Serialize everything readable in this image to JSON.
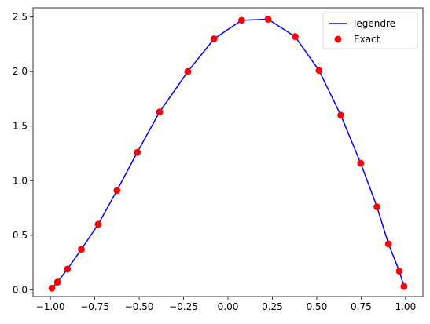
{
  "chart_data": {
    "type": "line",
    "x": [
      -0.9914,
      -0.9603,
      -0.9041,
      -0.8259,
      -0.7308,
      -0.6251,
      -0.5107,
      -0.3853,
      -0.2262,
      -0.0784,
      0.0766,
      0.2259,
      0.3783,
      0.513,
      0.6355,
      0.7475,
      0.8394,
      0.9041,
      0.9654,
      0.9914
    ],
    "series": [
      {
        "name": "legendre",
        "style": "line",
        "color": "#0000ff",
        "values": [
          0.015,
          0.07,
          0.19,
          0.37,
          0.6,
          0.91,
          1.26,
          1.63,
          2.0,
          2.3,
          2.47,
          2.48,
          2.32,
          2.01,
          1.6,
          1.16,
          0.76,
          0.42,
          0.17,
          0.03
        ]
      },
      {
        "name": "Exact",
        "style": "markers",
        "color": "#ff0000",
        "values": [
          0.015,
          0.07,
          0.19,
          0.37,
          0.6,
          0.91,
          1.26,
          1.63,
          2.0,
          2.3,
          2.47,
          2.48,
          2.32,
          2.01,
          1.6,
          1.16,
          0.76,
          0.42,
          0.17,
          0.03
        ]
      }
    ],
    "xlim": [
      -1.0981,
      1.0981
    ],
    "ylim": [
      -0.0625,
      2.584
    ],
    "xticks": [
      -1.0,
      -0.75,
      -0.5,
      -0.25,
      0.0,
      0.25,
      0.5,
      0.75,
      1.0
    ],
    "xtick_labels": [
      "−1.00",
      "−0.75",
      "−0.50",
      "−0.25",
      "0.00",
      "0.25",
      "0.50",
      "0.75",
      "1.00"
    ],
    "yticks": [
      0.0,
      0.5,
      1.0,
      1.5,
      2.0,
      2.5
    ],
    "ytick_labels": [
      "0.0",
      "0.5",
      "1.0",
      "1.5",
      "2.0",
      "2.5"
    ],
    "title": "",
    "xlabel": "",
    "ylabel": "",
    "grid": false,
    "legend_position": "top-right"
  }
}
